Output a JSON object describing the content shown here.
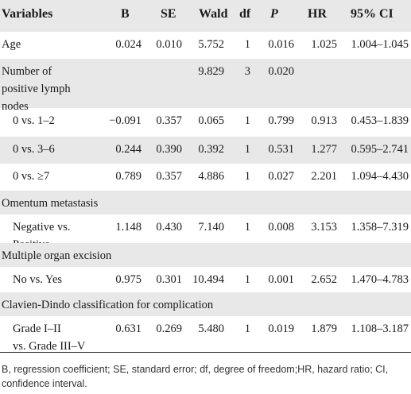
{
  "headers": [
    "Variables",
    "B",
    "SE",
    "Wald",
    "df",
    "P",
    "HR",
    "95% CI"
  ],
  "rows": [
    {
      "label": [
        "Age"
      ],
      "b": "0.024",
      "se": "0.010",
      "wald": "5.752",
      "df": "1",
      "p": "0.016",
      "hr": "1.025",
      "ci": "1.004–1.045"
    },
    {
      "label": [
        "Number of",
        "positive lymph",
        "nodes"
      ],
      "b": "",
      "se": "",
      "wald": "9.829",
      "df": "3",
      "p": "0.020",
      "hr": "",
      "ci": ""
    },
    {
      "label": [
        "0 vs. 1–2"
      ],
      "b": "−0.091",
      "se": "0.357",
      "wald": "0.065",
      "df": "1",
      "p": "0.799",
      "hr": "0.913",
      "ci": "0.453–1.839"
    },
    {
      "label": [
        "0 vs. 3–6"
      ],
      "b": "0.244",
      "se": "0.390",
      "wald": "0.392",
      "df": "1",
      "p": "0.531",
      "hr": "1.277",
      "ci": "0.595–2.741"
    },
    {
      "label": [
        "0 vs. ≥7"
      ],
      "b": "0.789",
      "se": "0.357",
      "wald": "4.886",
      "df": "1",
      "p": "0.027",
      "hr": "2.201",
      "ci": "1.094–4.430"
    },
    {
      "label": [
        "Omentum metastasis"
      ],
      "b": "",
      "se": "",
      "wald": "",
      "df": "",
      "p": "",
      "hr": "",
      "ci": ""
    },
    {
      "label": [
        "Negative vs.",
        "Positive"
      ],
      "b": "1.148",
      "se": "0.430",
      "wald": "7.140",
      "df": "1",
      "p": "0.008",
      "hr": "3.153",
      "ci": "1.358–7.319"
    },
    {
      "label": [
        "Multiple organ excision"
      ],
      "b": "",
      "se": "",
      "wald": "",
      "df": "",
      "p": "",
      "hr": "",
      "ci": ""
    },
    {
      "label": [
        "No vs. Yes"
      ],
      "b": "0.975",
      "se": "0.301",
      "wald": "10.494",
      "df": "1",
      "p": "0.001",
      "hr": "2.652",
      "ci": "1.470–4.783"
    },
    {
      "label": [
        "Clavien-Dindo classification for complication"
      ],
      "b": "",
      "se": "",
      "wald": "",
      "df": "",
      "p": "",
      "hr": "",
      "ci": ""
    },
    {
      "label": [
        "Grade I–II",
        "vs. Grade III–V"
      ],
      "b": "0.631",
      "se": "0.269",
      "wald": "5.480",
      "df": "1",
      "p": "0.019",
      "hr": "1.879",
      "ci": "1.108–3.187"
    }
  ],
  "footnote": "B, regression coefficient; SE, standard error; df, degree of freedom;HR, hazard ratio; CI, confidence interval.",
  "colors": {
    "shade": "#e8e8e8",
    "text": "#1a1a1a"
  }
}
